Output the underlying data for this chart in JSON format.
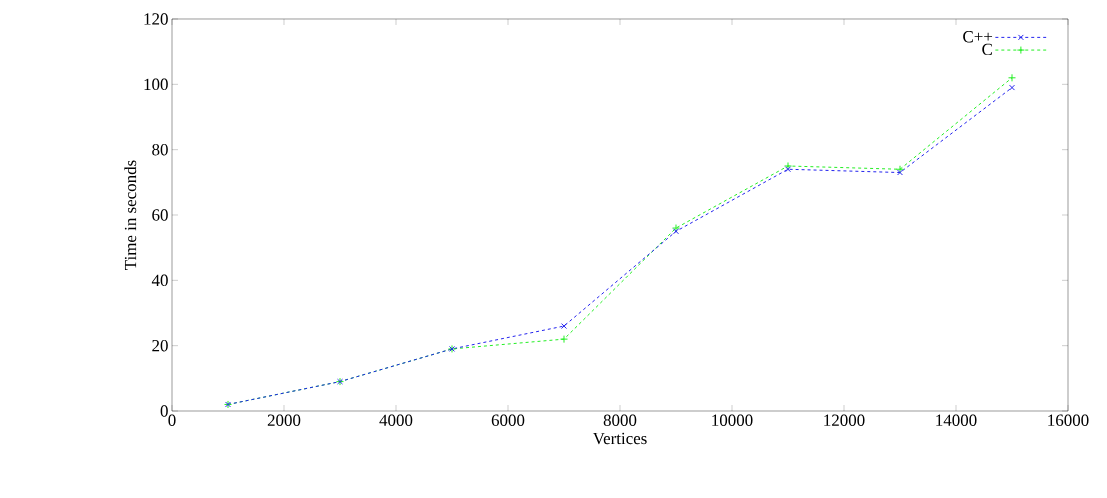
{
  "chart_data": {
    "type": "line",
    "xlabel": "Vertices",
    "ylabel": "Time in seconds",
    "x": [
      1000,
      3000,
      5000,
      7000,
      9000,
      11000,
      13000,
      15000
    ],
    "series": [
      {
        "name": "C++",
        "color": "#2222ee",
        "marker": "cross",
        "values": [
          2,
          9,
          19,
          26,
          55,
          74,
          73,
          99
        ]
      },
      {
        "name": "C",
        "color": "#22ee22",
        "marker": "plus",
        "values": [
          2,
          9,
          19,
          22,
          56,
          75,
          74,
          102
        ]
      }
    ],
    "line_style": "dashed",
    "legend": "top right",
    "grid": false,
    "xlim": [
      0,
      16000
    ],
    "xticks": [
      0,
      2000,
      4000,
      6000,
      8000,
      10000,
      12000,
      14000,
      16000
    ],
    "ylim": [
      0,
      120
    ],
    "yticks": [
      0,
      20,
      40,
      60,
      80,
      100,
      120
    ]
  }
}
